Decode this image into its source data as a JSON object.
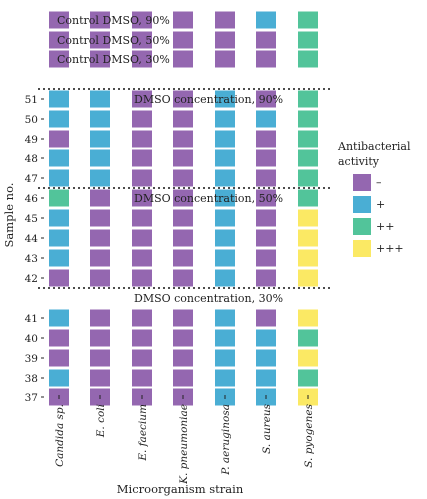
{
  "chart_data": {
    "type": "heatmap",
    "xlabel": "Microorganism strain",
    "ylabel": "Sample no.",
    "columns": [
      "Candida sp.",
      "E. coli",
      "E. faecium",
      "K. pneumoniae",
      "P. aeruginosa",
      "S. aureus",
      "S. pyogenes"
    ],
    "rows": [
      "Control DMSO, 90%",
      "Control DMSO, 50%",
      "Control DMSO, 30%",
      "51",
      "50",
      "49",
      "48",
      "47",
      "46",
      "45",
      "44",
      "43",
      "42",
      "41",
      "40",
      "39",
      "38",
      "37"
    ],
    "row_tick_labels": [
      "",
      "",
      "",
      "51",
      "50",
      "49",
      "48",
      "47",
      "46",
      "45",
      "44",
      "43",
      "42",
      "41",
      "40",
      "39",
      "38",
      "37"
    ],
    "legend": {
      "title": "Antibacterial activity",
      "placement": "right",
      "levels": [
        {
          "label": "–",
          "color": "#9467b0"
        },
        {
          "label": "+",
          "color": "#4aaed4"
        },
        {
          "label": "++",
          "color": "#52c49a"
        },
        {
          "label": "+++",
          "color": "#fbe964"
        }
      ]
    },
    "values": [
      [
        0,
        0,
        0,
        0,
        0,
        1,
        2
      ],
      [
        0,
        0,
        0,
        0,
        0,
        0,
        2
      ],
      [
        0,
        0,
        0,
        0,
        0,
        0,
        2
      ],
      [
        1,
        1,
        0,
        0,
        1,
        0,
        2
      ],
      [
        1,
        1,
        0,
        0,
        1,
        1,
        2
      ],
      [
        0,
        1,
        0,
        0,
        1,
        0,
        2
      ],
      [
        1,
        1,
        0,
        0,
        1,
        0,
        2
      ],
      [
        1,
        1,
        0,
        0,
        1,
        0,
        2
      ],
      [
        2,
        0,
        0,
        0,
        1,
        0,
        2
      ],
      [
        1,
        0,
        0,
        0,
        1,
        0,
        3
      ],
      [
        1,
        0,
        0,
        0,
        1,
        0,
        3
      ],
      [
        1,
        0,
        0,
        0,
        1,
        0,
        3
      ],
      [
        0,
        0,
        0,
        0,
        1,
        0,
        3
      ],
      [
        1,
        0,
        0,
        0,
        1,
        0,
        3
      ],
      [
        0,
        0,
        0,
        0,
        1,
        1,
        2
      ],
      [
        0,
        0,
        0,
        0,
        1,
        1,
        3
      ],
      [
        1,
        0,
        0,
        0,
        1,
        1,
        2
      ],
      [
        0,
        0,
        0,
        0,
        1,
        1,
        3
      ]
    ],
    "sections": [
      {
        "label": "DMSO concentration, 90%",
        "rows": [
          "51",
          "50",
          "49",
          "48",
          "47"
        ]
      },
      {
        "label": "DMSO concentration, 50%",
        "rows": [
          "46",
          "45",
          "44",
          "43",
          "42"
        ]
      },
      {
        "label": "DMSO concentration, 30%",
        "rows": [
          "41",
          "40",
          "39",
          "38",
          "37"
        ]
      }
    ],
    "grid": false
  }
}
